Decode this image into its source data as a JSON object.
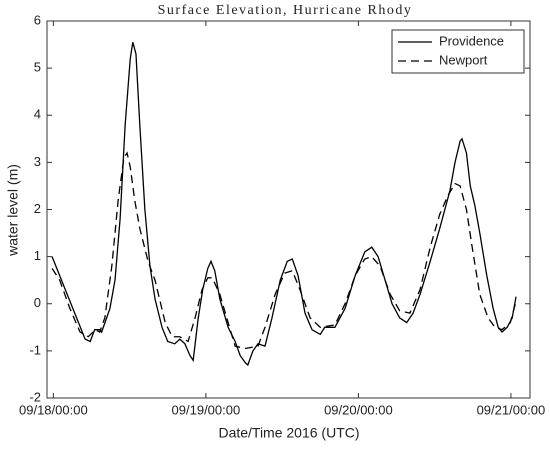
{
  "chart_data": {
    "type": "line",
    "title": "Surface Elevation, Hurricane Rhody",
    "xlabel": "Date/Time 2016 (UTC)",
    "ylabel": "water level (m)",
    "xlim": [
      -1,
      75
    ],
    "xticks": [
      {
        "value": 0,
        "label": "09/18/00:00"
      },
      {
        "value": 24,
        "label": "09/19/00:00"
      },
      {
        "value": 48,
        "label": "09/20/00:00"
      },
      {
        "value": 72,
        "label": "09/21/00:00"
      }
    ],
    "ylim": [
      -2,
      6
    ],
    "yticks": [
      -2,
      -1,
      0,
      1,
      2,
      3,
      4,
      5,
      6
    ],
    "legend": "upper right",
    "series": [
      {
        "name": "Providence",
        "color": "#000000",
        "linestyle": "solid",
        "x": [
          -0.2,
          5,
          5.8,
          6.5,
          7.3,
          7.6,
          8.9,
          9.7,
          10.5,
          11.3,
          12.1,
          12.5,
          13,
          13.6,
          14.4,
          15.2,
          16,
          17.1,
          18,
          19.1,
          19.9,
          20.7,
          21.5,
          22,
          22.8,
          23.5,
          24.3,
          24.8,
          25.4,
          26.2,
          27.5,
          28.6,
          29.4,
          30.2,
          30.6,
          31.4,
          32.2,
          33.3,
          34.4,
          35.7,
          36.8,
          37.6,
          38.5,
          39.6,
          40.7,
          42,
          42.7,
          44.3,
          45.9,
          47.5,
          49,
          50.1,
          51.1,
          52.2,
          53.3,
          54.5,
          55.6,
          56.6,
          57.7,
          59.3,
          60.8,
          62.4,
          63.2,
          64,
          64.3,
          65,
          65.6,
          66.3,
          67.1,
          68.2,
          69.2,
          70,
          70.6,
          71.4,
          72.2,
          72.8
        ],
        "values": [
          1.0,
          -0.75,
          -0.8,
          -0.55,
          -0.55,
          -0.6,
          -0.1,
          0.5,
          1.8,
          3.8,
          5.2,
          5.55,
          5.3,
          3.8,
          2.0,
          0.8,
          0.1,
          -0.5,
          -0.8,
          -0.85,
          -0.75,
          -0.85,
          -1.1,
          -1.2,
          -0.3,
          0.3,
          0.75,
          0.9,
          0.7,
          0.1,
          -0.5,
          -0.8,
          -1.1,
          -1.25,
          -1.3,
          -1.0,
          -0.85,
          -0.9,
          -0.3,
          0.5,
          0.9,
          0.95,
          0.6,
          -0.2,
          -0.55,
          -0.65,
          -0.5,
          -0.5,
          -0.1,
          0.6,
          1.1,
          1.2,
          1.0,
          0.5,
          0.0,
          -0.3,
          -0.4,
          -0.2,
          0.2,
          0.9,
          1.6,
          2.4,
          3.0,
          3.45,
          3.5,
          3.2,
          2.5,
          2.1,
          1.5,
          0.6,
          -0.1,
          -0.5,
          -0.6,
          -0.5,
          -0.3,
          0.15
        ]
      },
      {
        "name": "Newport",
        "color": "#000000",
        "linestyle": "dashed",
        "x": [
          -0.2,
          1,
          2.6,
          4.2,
          5.5,
          6.6,
          7.3,
          8.1,
          9.2,
          10.2,
          11.1,
          11.6,
          12.1,
          12.8,
          13.6,
          14.9,
          16,
          17.6,
          18.7,
          19.9,
          21.2,
          22.3,
          23.4,
          24.3,
          25,
          26.2,
          27.5,
          28.6,
          30.2,
          32.2,
          33.3,
          34.9,
          36.4,
          37.6,
          38.8,
          40.4,
          42,
          44.3,
          45.9,
          47.5,
          49,
          50.1,
          51.4,
          53,
          54.5,
          56.1,
          57.7,
          59.3,
          60.8,
          62.1,
          63.2,
          64,
          65,
          65.9,
          67.1,
          68.4,
          69.5,
          70.6,
          71.9,
          72.7
        ],
        "values": [
          0.75,
          0.5,
          -0.1,
          -0.6,
          -0.7,
          -0.55,
          -0.6,
          -0.3,
          0.8,
          2.2,
          3.1,
          3.2,
          2.9,
          2.2,
          1.6,
          0.9,
          0.5,
          -0.4,
          -0.7,
          -0.7,
          -0.8,
          -0.3,
          0.3,
          0.55,
          0.55,
          0.2,
          -0.4,
          -0.9,
          -0.95,
          -0.9,
          -0.5,
          0.2,
          0.65,
          0.7,
          0.3,
          -0.3,
          -0.5,
          -0.45,
          0.0,
          0.6,
          0.95,
          1.0,
          0.8,
          0.2,
          -0.15,
          -0.2,
          0.3,
          1.2,
          1.9,
          2.3,
          2.55,
          2.5,
          2.0,
          1.2,
          0.2,
          -0.3,
          -0.5,
          -0.55,
          -0.4,
          0.0
        ]
      }
    ]
  }
}
